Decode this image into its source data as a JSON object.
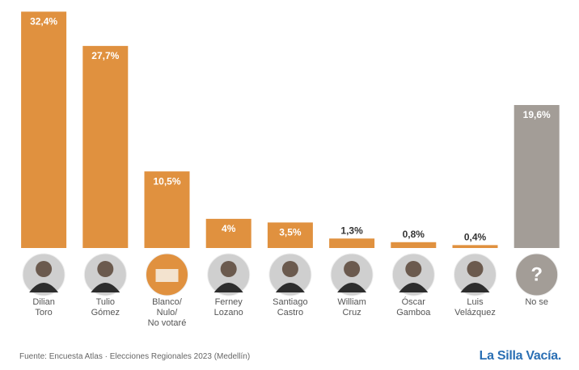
{
  "chart_data": {
    "type": "bar",
    "categories": [
      "Dilian\nToro",
      "Tulio\nGómez",
      "Blanco/\nNulo/\nNo votaré",
      "Ferney\nLozano",
      "Santiago\nCastro",
      "William\nCruz",
      "Óscar\nGamboa",
      "Luis\nVelázquez",
      "No se"
    ],
    "values": [
      32.4,
      27.7,
      10.5,
      4,
      3.5,
      1.3,
      0.8,
      0.4,
      19.6
    ],
    "value_labels": [
      "32,4%",
      "27,7%",
      "10,5%",
      "4%",
      "3,5%",
      "1,3%",
      "0,8%",
      "0,4%",
      "19,6%"
    ],
    "colors": [
      "#e0913f",
      "#e0913f",
      "#e0913f",
      "#e0913f",
      "#e0913f",
      "#e0913f",
      "#e0913f",
      "#e0913f",
      "#a39d97"
    ],
    "ylim": [
      0,
      33
    ],
    "unknown_symbol": "?",
    "source": "Fuente: Encuesta Atlas · Elecciones Regionales 2023 (Medellín)",
    "brand": "La Silla Vacía."
  }
}
